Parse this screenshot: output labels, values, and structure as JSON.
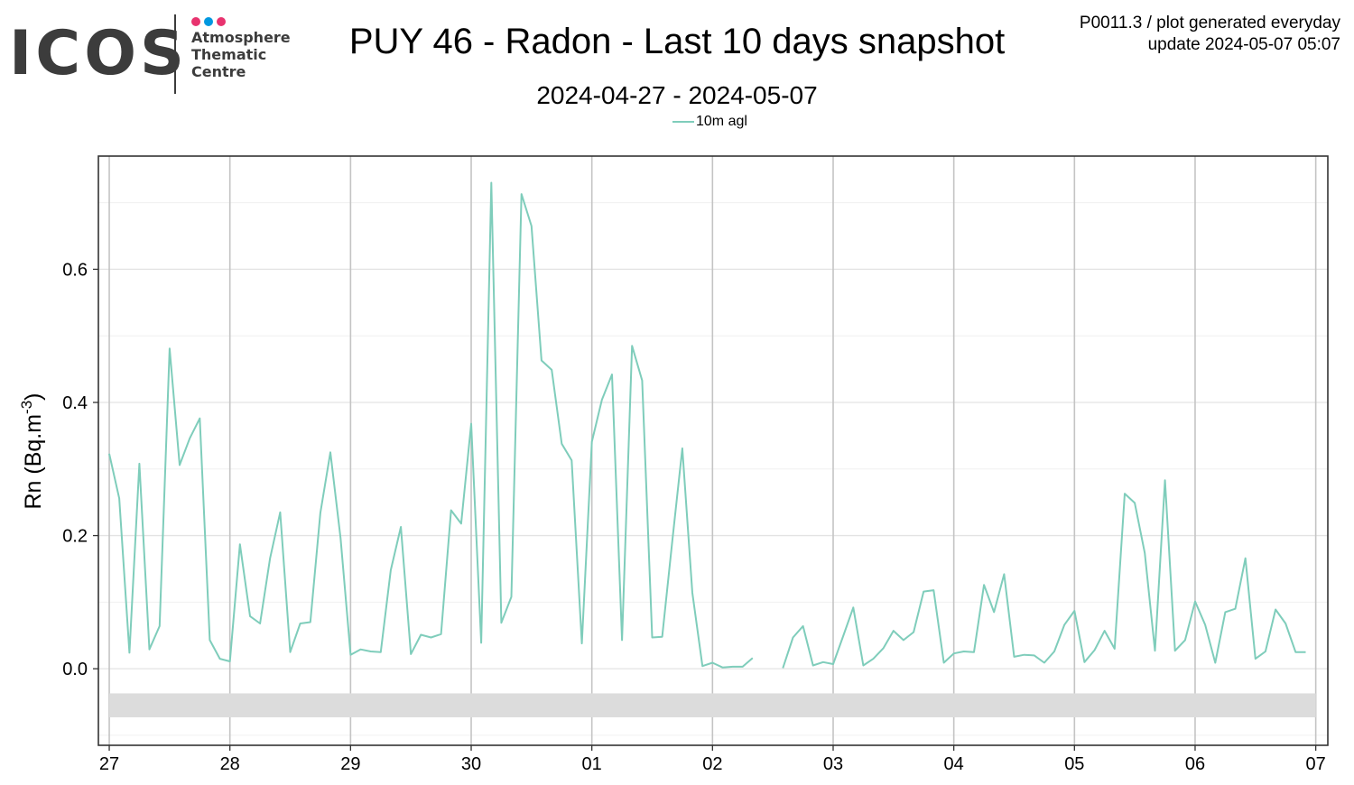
{
  "logo": {
    "text": "ICOS",
    "line1": "Atmosphere",
    "line2": "Thematic",
    "line3": "Centre",
    "dot_colors": [
      "#e8336f",
      "#0098e0",
      "#e8336f"
    ],
    "text_color": "#3c3c3c"
  },
  "header": {
    "title": "PUY 46 - Radon - Last 10 days snapshot",
    "subtitle": "2024-04-27 - 2024-05-07",
    "meta_line1": "P0011.3 / plot generated everyday",
    "meta_line2": "update  2024-05-07 05:07"
  },
  "chart_data": {
    "type": "line",
    "title": "PUY 46 - Radon - Last 10 days snapshot",
    "subtitle": "2024-04-27 - 2024-05-07",
    "xlabel": "",
    "ylabel": "Rn (Bq.m",
    "ylabel_sup": "-3",
    "ylabel_close": ")",
    "x_unit": "day",
    "x_ticks": [
      {
        "day": 0,
        "label": "27"
      },
      {
        "day": 1,
        "label": "28"
      },
      {
        "day": 2,
        "label": "29"
      },
      {
        "day": 3,
        "label": "30"
      },
      {
        "day": 4,
        "label": "01"
      },
      {
        "day": 5,
        "label": "02"
      },
      {
        "day": 6,
        "label": "03"
      },
      {
        "day": 7,
        "label": "04"
      },
      {
        "day": 8,
        "label": "05"
      },
      {
        "day": 9,
        "label": "06"
      },
      {
        "day": 10,
        "label": "07"
      }
    ],
    "y_ticks": [
      0.0,
      0.2,
      0.4,
      0.6
    ],
    "y_tick_labels": [
      "0.0",
      "0.2",
      "0.4",
      "0.6"
    ],
    "xlim": [
      -0.09,
      10.1
    ],
    "ylim": [
      -0.115,
      0.77
    ],
    "grid": true,
    "legend_position": "top-center",
    "line_color": "#7fcdbb",
    "flag_band": {
      "y0": -0.073,
      "y1": -0.037,
      "x0": 0,
      "x1": 10,
      "color": "#dcdcdc"
    },
    "series": [
      {
        "name": "10m agl",
        "segments": [
          [
            [
              0.0,
              0.323
            ],
            [
              0.083,
              0.256
            ],
            [
              0.167,
              0.024
            ],
            [
              0.25,
              0.308
            ],
            [
              0.333,
              0.029
            ],
            [
              0.417,
              0.064
            ],
            [
              0.5,
              0.481
            ],
            [
              0.583,
              0.306
            ],
            [
              0.667,
              0.346
            ],
            [
              0.75,
              0.376
            ],
            [
              0.833,
              0.043
            ],
            [
              0.917,
              0.015
            ],
            [
              1.0,
              0.011
            ],
            [
              1.083,
              0.187
            ],
            [
              1.167,
              0.079
            ],
            [
              1.25,
              0.068
            ],
            [
              1.333,
              0.166
            ],
            [
              1.417,
              0.235
            ],
            [
              1.5,
              0.025
            ],
            [
              1.583,
              0.068
            ],
            [
              1.667,
              0.07
            ],
            [
              1.75,
              0.234
            ],
            [
              1.833,
              0.325
            ],
            [
              1.917,
              0.196
            ],
            [
              2.0,
              0.021
            ],
            [
              2.083,
              0.029
            ],
            [
              2.167,
              0.026
            ],
            [
              2.25,
              0.025
            ],
            [
              2.333,
              0.148
            ],
            [
              2.417,
              0.213
            ],
            [
              2.5,
              0.022
            ],
            [
              2.583,
              0.051
            ],
            [
              2.667,
              0.047
            ],
            [
              2.75,
              0.052
            ],
            [
              2.833,
              0.238
            ],
            [
              2.917,
              0.218
            ],
            [
              3.0,
              0.368
            ],
            [
              3.083,
              0.039
            ],
            [
              3.167,
              0.73
            ],
            [
              3.25,
              0.069
            ],
            [
              3.333,
              0.108
            ],
            [
              3.417,
              0.713
            ],
            [
              3.5,
              0.665
            ],
            [
              3.583,
              0.463
            ],
            [
              3.667,
              0.449
            ],
            [
              3.75,
              0.338
            ],
            [
              3.833,
              0.313
            ],
            [
              3.917,
              0.038
            ],
            [
              4.0,
              0.341
            ],
            [
              4.083,
              0.404
            ],
            [
              4.167,
              0.442
            ],
            [
              4.25,
              0.043
            ],
            [
              4.333,
              0.485
            ],
            [
              4.417,
              0.433
            ],
            [
              4.5,
              0.047
            ],
            [
              4.583,
              0.048
            ],
            [
              4.667,
              0.192
            ],
            [
              4.75,
              0.331
            ],
            [
              4.833,
              0.114
            ],
            [
              4.917,
              0.004
            ],
            [
              5.0,
              0.009
            ],
            [
              5.083,
              0.002
            ],
            [
              5.167,
              0.003
            ],
            [
              5.25,
              0.003
            ],
            [
              5.333,
              0.016
            ]
          ],
          [
            [
              5.583,
              0.001
            ],
            [
              5.667,
              0.047
            ],
            [
              5.75,
              0.064
            ],
            [
              5.833,
              0.005
            ],
            [
              5.917,
              0.01
            ],
            [
              6.0,
              0.007
            ],
            [
              6.083,
              0.049
            ],
            [
              6.167,
              0.092
            ],
            [
              6.25,
              0.005
            ],
            [
              6.333,
              0.015
            ],
            [
              6.417,
              0.031
            ],
            [
              6.5,
              0.057
            ],
            [
              6.583,
              0.043
            ],
            [
              6.667,
              0.055
            ],
            [
              6.75,
              0.116
            ],
            [
              6.833,
              0.118
            ],
            [
              6.917,
              0.009
            ],
            [
              7.0,
              0.023
            ],
            [
              7.083,
              0.026
            ],
            [
              7.167,
              0.025
            ],
            [
              7.25,
              0.126
            ],
            [
              7.333,
              0.085
            ],
            [
              7.417,
              0.142
            ],
            [
              7.5,
              0.018
            ],
            [
              7.583,
              0.021
            ],
            [
              7.667,
              0.02
            ],
            [
              7.75,
              0.009
            ],
            [
              7.833,
              0.026
            ],
            [
              7.917,
              0.066
            ],
            [
              8.0,
              0.087
            ],
            [
              8.083,
              0.01
            ],
            [
              8.167,
              0.028
            ],
            [
              8.25,
              0.057
            ],
            [
              8.333,
              0.03
            ],
            [
              8.417,
              0.263
            ],
            [
              8.5,
              0.249
            ],
            [
              8.583,
              0.174
            ],
            [
              8.667,
              0.027
            ],
            [
              8.75,
              0.283
            ],
            [
              8.833,
              0.027
            ],
            [
              8.917,
              0.043
            ],
            [
              9.0,
              0.101
            ],
            [
              9.083,
              0.066
            ],
            [
              9.167,
              0.009
            ],
            [
              9.25,
              0.085
            ],
            [
              9.333,
              0.09
            ],
            [
              9.417,
              0.166
            ],
            [
              9.5,
              0.015
            ],
            [
              9.583,
              0.026
            ],
            [
              9.667,
              0.089
            ],
            [
              9.75,
              0.068
            ],
            [
              9.833,
              0.025
            ],
            [
              9.917,
              0.025
            ]
          ]
        ]
      }
    ]
  }
}
